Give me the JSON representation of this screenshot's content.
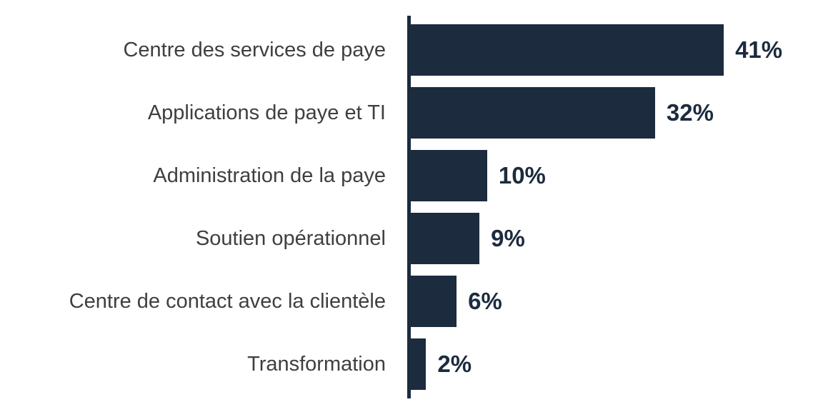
{
  "chart_data": {
    "type": "bar",
    "orientation": "horizontal",
    "title": "",
    "xlabel": "",
    "ylabel": "",
    "categories": [
      "Centre des services de paye",
      "Applications de paye et TI",
      "Administration de la paye",
      "Soutien opérationnel",
      "Centre de contact avec la clientèle",
      "Transformation"
    ],
    "values": [
      41,
      32,
      10,
      9,
      6,
      2
    ],
    "value_labels": [
      "41%",
      "32%",
      "10%",
      "9%",
      "6%",
      "2%"
    ],
    "unit": "%",
    "xlim": [
      0,
      54
    ],
    "grid": false,
    "legend": false
  },
  "colors": {
    "bar": "#1c2b3e",
    "axis_line": "#1c2b3e",
    "value_label": "#1c2b3e",
    "category_label": "#3f3f3f",
    "background": "#ffffff"
  }
}
